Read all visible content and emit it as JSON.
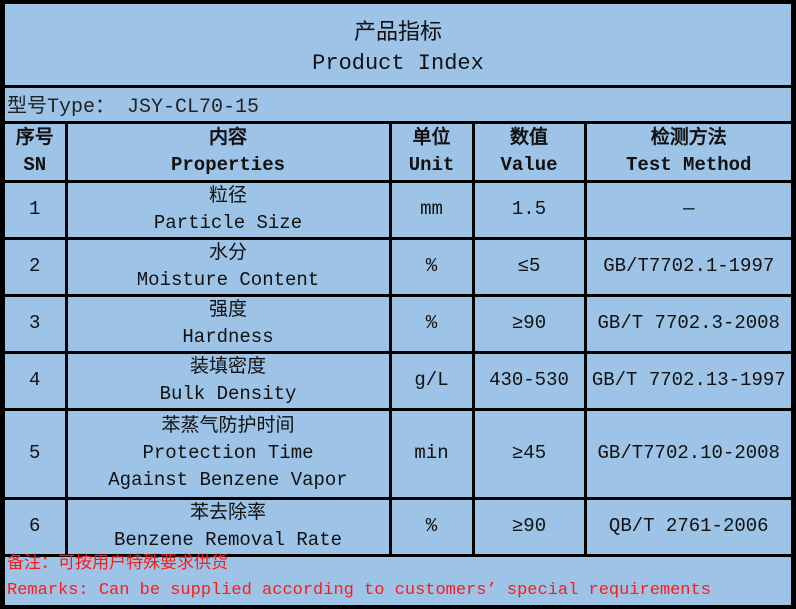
{
  "title": {
    "zh": "产品指标",
    "en": "Product Index"
  },
  "type_line": "型号Type： JSY-CL70-15",
  "headers": [
    {
      "zh": "序号",
      "en": "SN"
    },
    {
      "zh": "内容",
      "en": "Properties"
    },
    {
      "zh": "单位",
      "en": "Unit"
    },
    {
      "zh": "数值",
      "en": "Value"
    },
    {
      "zh": "检测方法",
      "en": "Test Method"
    }
  ],
  "rows": [
    {
      "sn": "1",
      "zh": "粒径",
      "en": "Particle Size",
      "unit": "mm",
      "value": "1.5",
      "method": "—"
    },
    {
      "sn": "2",
      "zh": "水分",
      "en": "Moisture Content",
      "unit": "%",
      "value": "≤5",
      "method": "GB/T7702.1-1997"
    },
    {
      "sn": "3",
      "zh": "强度",
      "en": "Hardness",
      "unit": "%",
      "value": "≥90",
      "method": "GB/T 7702.3-2008"
    },
    {
      "sn": "4",
      "zh": "装填密度",
      "en": "Bulk Density",
      "unit": "g/L",
      "value": "430-530",
      "method": "GB/T 7702.13-1997"
    },
    {
      "sn": "5",
      "zh": "苯蒸气防护时间",
      "en": "Protection Time Against Benzene Vapor",
      "unit": "min",
      "value": "≥45",
      "method": "GB/T7702.10-2008"
    },
    {
      "sn": "6",
      "zh": "苯去除率",
      "en": "Benzene Removal Rate",
      "unit": "%",
      "value": "≥90",
      "method": "QB/T 2761-2006"
    }
  ],
  "remarks": {
    "zh": "备注：可按用户特殊要求供货",
    "en": "Remarks: Can be supplied according to customers’ special requirements"
  },
  "colors": {
    "background": "#9dc3e6",
    "border": "#000000",
    "remark": "#ff1a1a"
  }
}
